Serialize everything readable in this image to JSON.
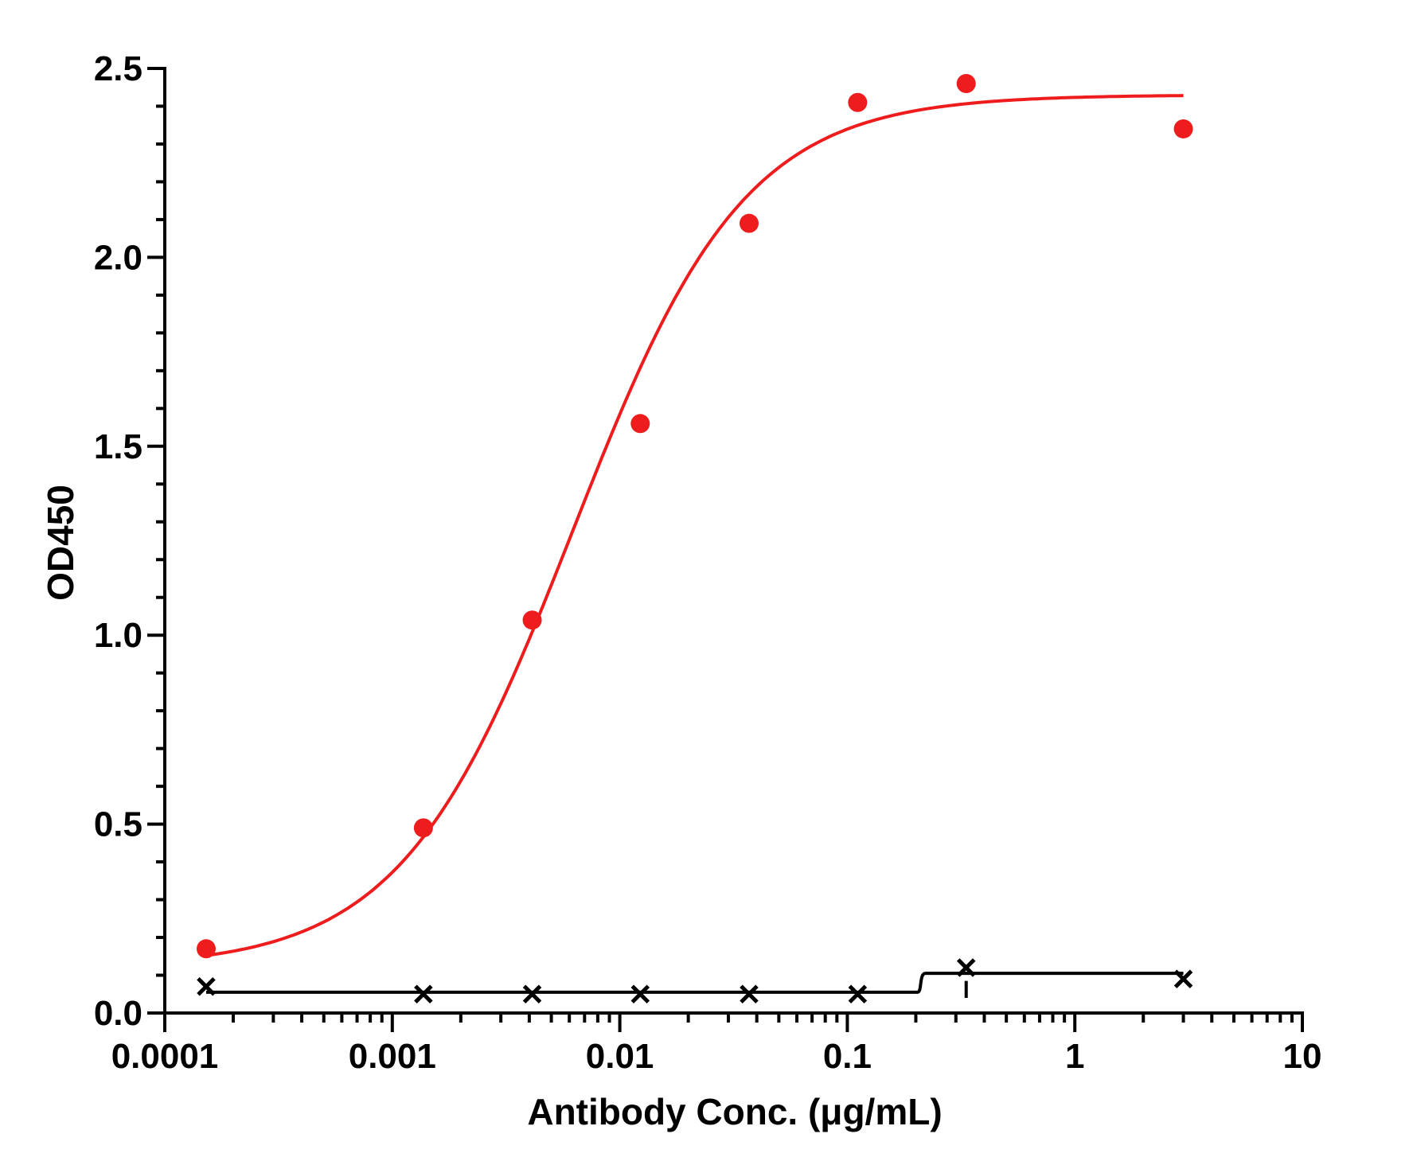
{
  "chart_data": {
    "type": "scatter",
    "title": "",
    "xlabel": "Antibody Conc. (μg/mL)",
    "ylabel": "OD450",
    "x_scale": "log",
    "xlim": [
      0.0001,
      10
    ],
    "ylim": [
      0,
      2.5
    ],
    "x_ticks": [
      {
        "value": 0.0001,
        "label": "0.0001"
      },
      {
        "value": 0.001,
        "label": "0.001"
      },
      {
        "value": 0.01,
        "label": "0.01"
      },
      {
        "value": 0.1,
        "label": "0.1"
      },
      {
        "value": 1,
        "label": "1"
      },
      {
        "value": 10,
        "label": "10"
      }
    ],
    "y_ticks": [
      {
        "value": 0,
        "label": "0.0"
      },
      {
        "value": 0.5,
        "label": "0.5"
      },
      {
        "value": 1,
        "label": "1.0"
      },
      {
        "value": 1.5,
        "label": "1.5"
      },
      {
        "value": 2,
        "label": "2.0"
      },
      {
        "value": 2.5,
        "label": "2.5"
      }
    ],
    "grid": false,
    "legend": "none",
    "series": [
      {
        "marker": "circle",
        "color": "#ee1c1c",
        "fit": "sigmoidal",
        "points": [
          {
            "x": 0.000152,
            "y": 0.17
          },
          {
            "x": 0.00137,
            "y": 0.49
          },
          {
            "x": 0.00412,
            "y": 1.04
          },
          {
            "x": 0.0123,
            "y": 1.56
          },
          {
            "x": 0.037,
            "y": 2.09
          },
          {
            "x": 0.111,
            "y": 2.41
          },
          {
            "x": 0.333,
            "y": 2.46
          },
          {
            "x": 3.0,
            "y": 2.34
          }
        ]
      },
      {
        "marker": "x",
        "color": "#000000",
        "fit": "step",
        "points": [
          {
            "x": 0.000152,
            "y": 0.07
          },
          {
            "x": 0.00137,
            "y": 0.05
          },
          {
            "x": 0.00412,
            "y": 0.05
          },
          {
            "x": 0.0123,
            "y": 0.05
          },
          {
            "x": 0.037,
            "y": 0.05
          },
          {
            "x": 0.111,
            "y": 0.05
          },
          {
            "x": 0.333,
            "y": 0.12
          },
          {
            "x": 3.0,
            "y": 0.09
          }
        ]
      }
    ]
  }
}
